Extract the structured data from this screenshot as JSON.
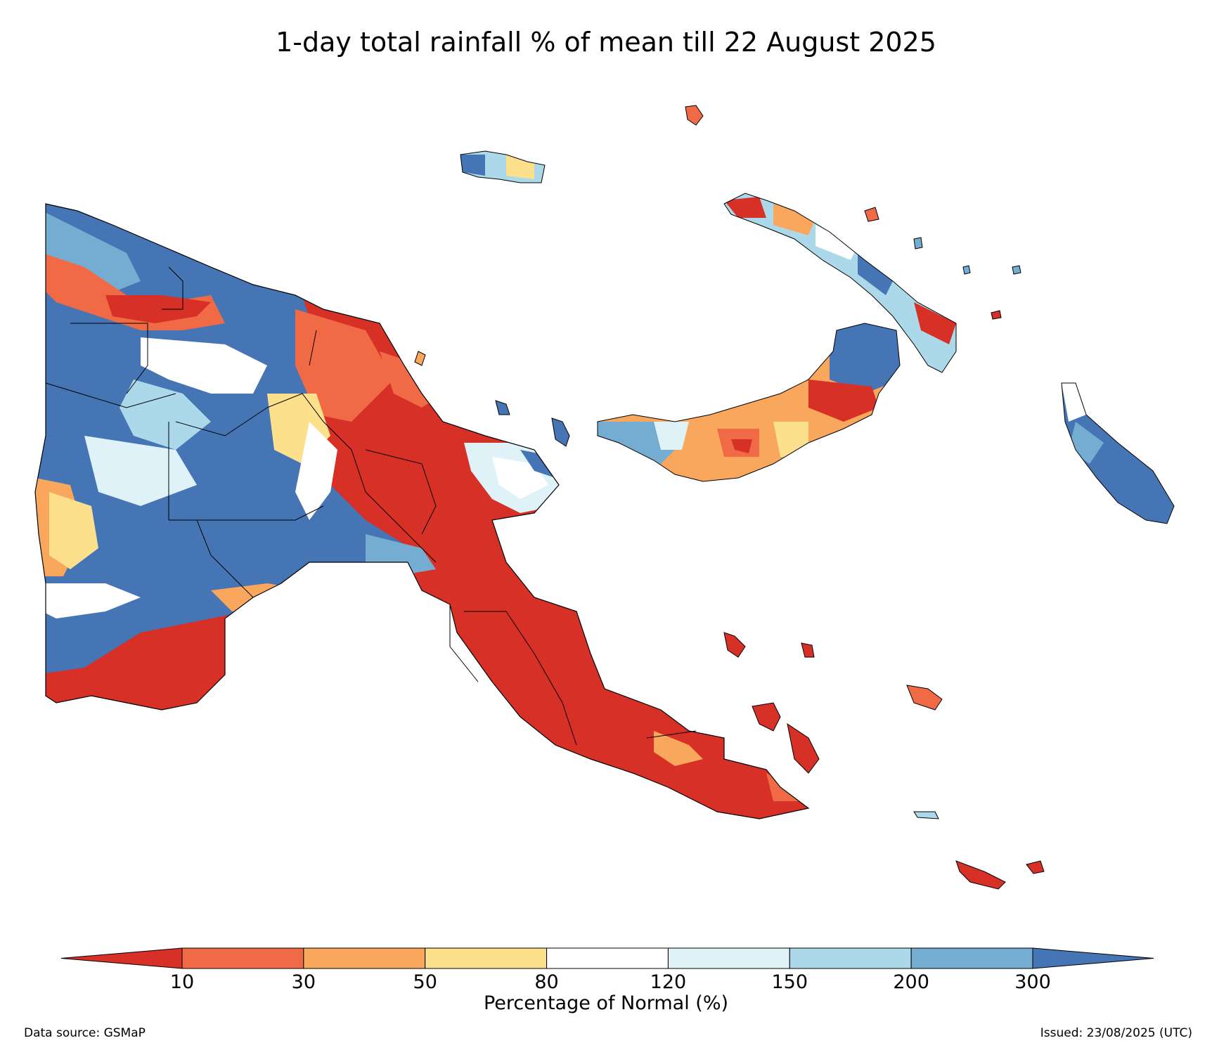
{
  "title": "1-day total rainfall % of mean till 22 August 2025",
  "colorbar": {
    "title": "Percentage of Normal (%)",
    "ticks": [
      "10",
      "30",
      "50",
      "80",
      "120",
      "150",
      "200",
      "300"
    ],
    "colors": [
      "#d73027",
      "#f06b45",
      "#f9a75c",
      "#fde08c",
      "#ffffff",
      "#dff2f8",
      "#abd9e9",
      "#74add1",
      "#4575b4"
    ],
    "extend": "both"
  },
  "footer": {
    "source": "Data source: GSMaP",
    "issued": "Issued: 23/08/2025 (UTC)"
  },
  "map": {
    "region": "Papua New Guinea",
    "categories": {
      "below_10": "#d73027",
      "10_30": "#f06b45",
      "30_50": "#f9a75c",
      "50_80": "#fde08c",
      "80_120": "#ffffff",
      "120_150": "#dff2f8",
      "150_200": "#abd9e9",
      "200_300": "#74add1",
      "above_300": "#4575b4"
    },
    "boundary_color": "#000000"
  }
}
